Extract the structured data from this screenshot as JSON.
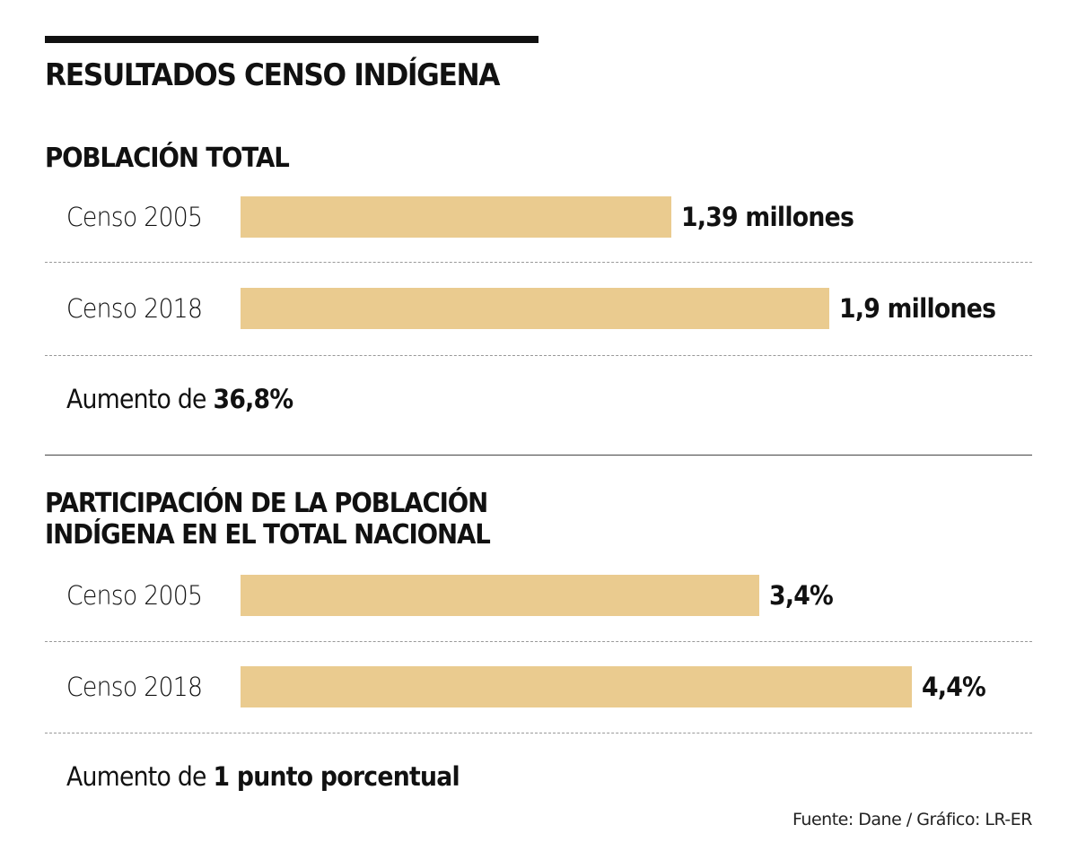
{
  "title": "RESULTADOS CENSO INDÍGENA",
  "colors": {
    "bar": "#EACB8F",
    "text": "#111111"
  },
  "chart_data": [
    {
      "type": "bar",
      "orientation": "horizontal",
      "title": "POBLACIÓN TOTAL",
      "categories": [
        "Censo 2005",
        "Censo 2018"
      ],
      "values": [
        1.39,
        1.9
      ],
      "unit": "millones",
      "data_labels": [
        "1,39 millones",
        "1,9 millones"
      ],
      "note_prefix": "Aumento de ",
      "note_value": "36,8%"
    },
    {
      "type": "bar",
      "orientation": "horizontal",
      "title_lines": [
        "PARTICIPACIÓN DE LA POBLACIÓN",
        "INDÍGENA EN EL TOTAL NACIONAL"
      ],
      "categories": [
        "Censo 2005",
        "Censo 2018"
      ],
      "values": [
        3.4,
        4.4
      ],
      "unit": "%",
      "data_labels": [
        "3,4%",
        "4,4%"
      ],
      "note_prefix": "Aumento de ",
      "note_value": "1 punto porcentual"
    }
  ],
  "source": "Fuente: Dane / Gráfico: LR-ER"
}
